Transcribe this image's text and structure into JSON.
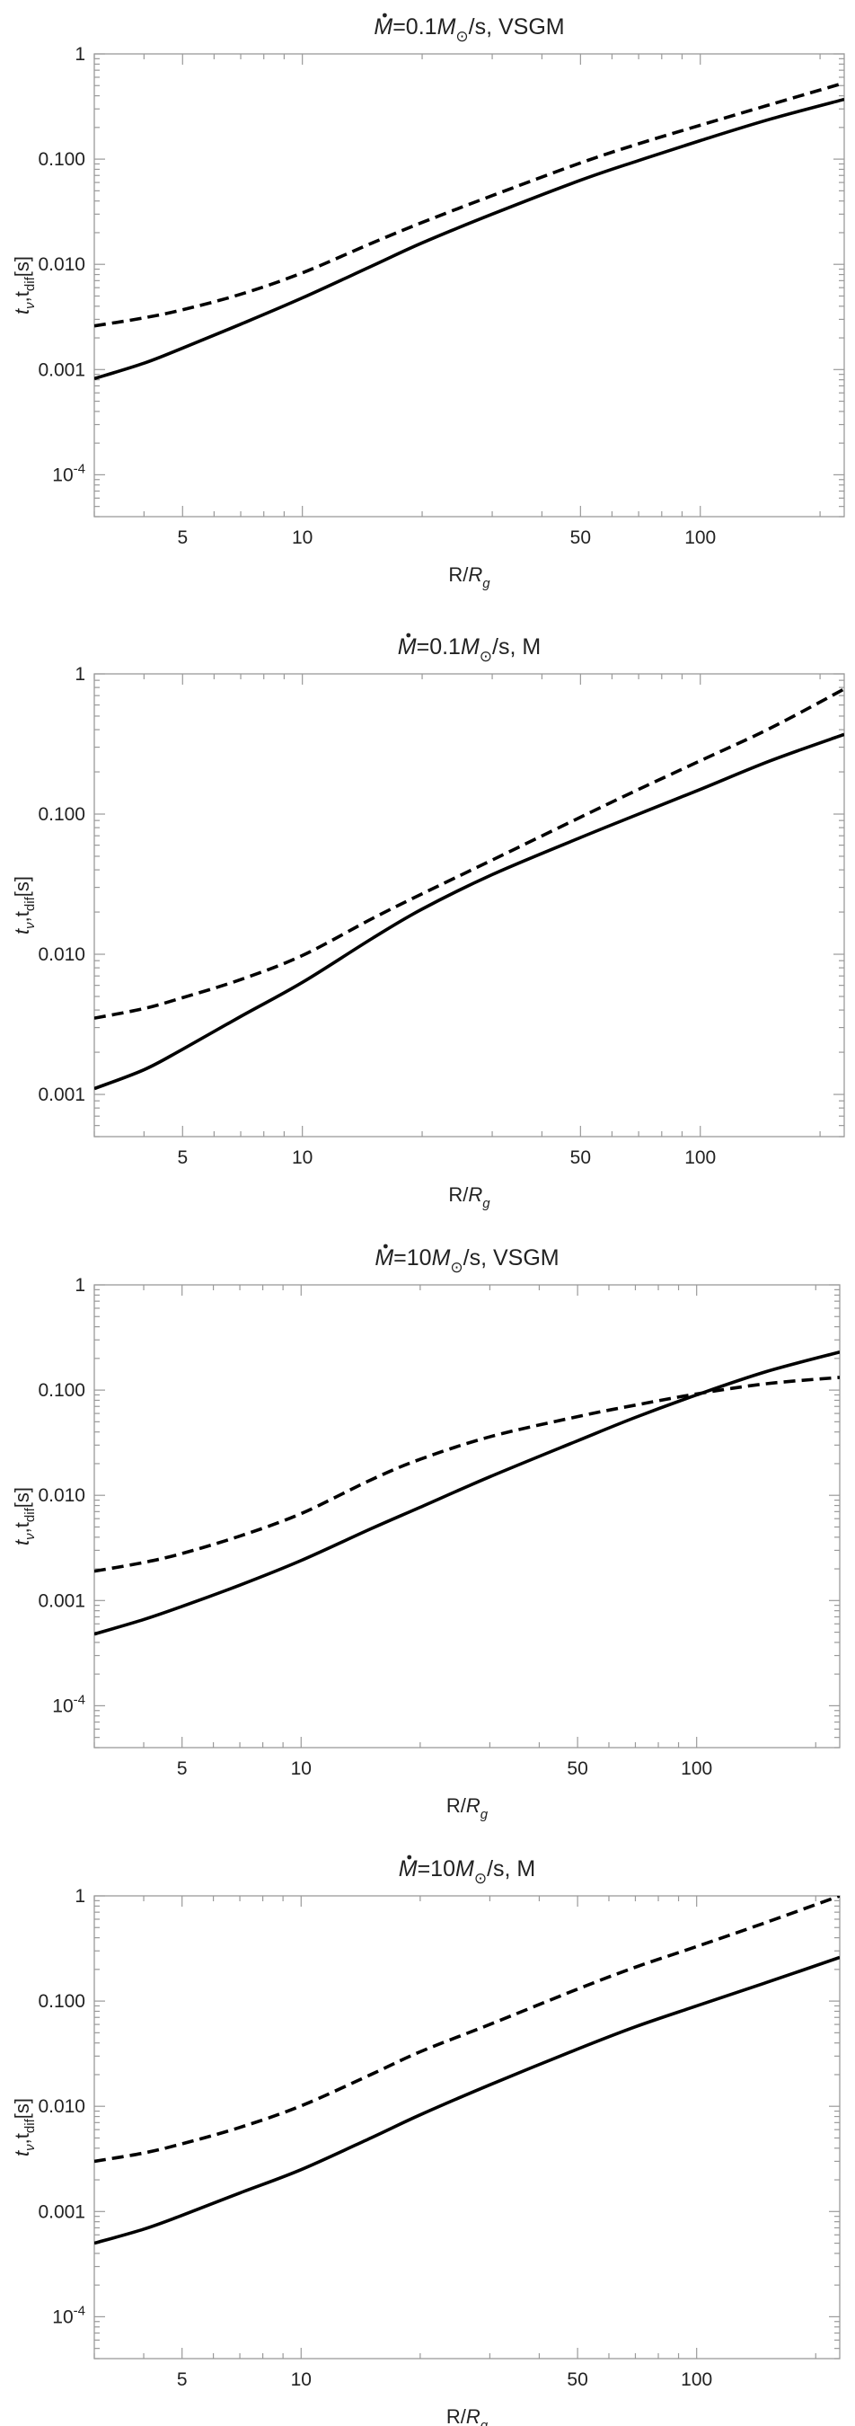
{
  "chart_data": [
    {
      "type": "line",
      "title_main": "=0.1M",
      "title_unit": "/s, VSGM",
      "xlabel": "R/R",
      "xlabel_sub": "g",
      "ylabel": "t",
      "ylabel_sub1": "ν",
      "ylabel_mid": ",t",
      "ylabel_sub2": "dif",
      "ylabel_end": "[s]",
      "xscale": "log",
      "yscale": "log",
      "xlim": [
        3,
        230
      ],
      "ylim": [
        4e-05,
        1
      ],
      "xticks": [
        {
          "v": 5,
          "label": "5"
        },
        {
          "v": 10,
          "label": "10"
        },
        {
          "v": 50,
          "label": "50"
        },
        {
          "v": 100,
          "label": "100"
        }
      ],
      "yticks": [
        {
          "v": 1,
          "label": "1"
        },
        {
          "v": 0.1,
          "label": "0.100"
        },
        {
          "v": 0.01,
          "label": "0.010"
        },
        {
          "v": 0.001,
          "label": "0.001"
        },
        {
          "v": 0.0001,
          "label": "10",
          "exp": "-4"
        }
      ],
      "series": [
        {
          "style": "solid",
          "x": [
            3,
            4,
            5,
            7,
            10,
            15,
            20,
            30,
            50,
            70,
            100,
            150,
            230
          ],
          "y": [
            0.00082,
            0.00115,
            0.0016,
            0.0027,
            0.0048,
            0.0097,
            0.016,
            0.03,
            0.063,
            0.097,
            0.15,
            0.24,
            0.37
          ]
        },
        {
          "style": "dashed",
          "x": [
            3,
            4,
            5,
            7,
            10,
            15,
            20,
            30,
            50,
            70,
            100,
            150,
            230
          ],
          "y": [
            0.0026,
            0.0031,
            0.0037,
            0.0052,
            0.0083,
            0.016,
            0.025,
            0.045,
            0.092,
            0.14,
            0.21,
            0.33,
            0.53
          ]
        }
      ]
    },
    {
      "type": "line",
      "title_main": "=0.1M",
      "title_unit": "/s, M",
      "xlabel": "R/R",
      "xlabel_sub": "g",
      "ylabel": "t",
      "ylabel_sub1": "ν",
      "ylabel_mid": ",t",
      "ylabel_sub2": "dif",
      "ylabel_end": "[s]",
      "xscale": "log",
      "yscale": "log",
      "xlim": [
        3,
        230
      ],
      "ylim": [
        0.0005,
        1
      ],
      "xticks": [
        {
          "v": 5,
          "label": "5"
        },
        {
          "v": 10,
          "label": "10"
        },
        {
          "v": 50,
          "label": "50"
        },
        {
          "v": 100,
          "label": "100"
        }
      ],
      "yticks": [
        {
          "v": 1,
          "label": "1"
        },
        {
          "v": 0.1,
          "label": "0.100"
        },
        {
          "v": 0.01,
          "label": "0.010"
        },
        {
          "v": 0.001,
          "label": "0.001"
        }
      ],
      "series": [
        {
          "style": "solid",
          "x": [
            3,
            4,
            5,
            7,
            10,
            15,
            20,
            30,
            50,
            70,
            100,
            150,
            230
          ],
          "y": [
            0.0011,
            0.0015,
            0.0021,
            0.0036,
            0.0063,
            0.013,
            0.021,
            0.037,
            0.068,
            0.1,
            0.15,
            0.24,
            0.37
          ]
        },
        {
          "style": "dashed",
          "x": [
            3,
            4,
            5,
            7,
            10,
            15,
            20,
            30,
            50,
            70,
            100,
            150,
            230
          ],
          "y": [
            0.0035,
            0.0041,
            0.0049,
            0.0066,
            0.0098,
            0.018,
            0.027,
            0.047,
            0.095,
            0.15,
            0.24,
            0.41,
            0.78
          ]
        }
      ]
    },
    {
      "type": "line",
      "title_main": "=10M",
      "title_unit": "/s, VSGM",
      "xlabel": "R/R",
      "xlabel_sub": "g",
      "ylabel": "t",
      "ylabel_sub1": "ν",
      "ylabel_mid": ",t",
      "ylabel_sub2": "dif",
      "ylabel_end": "[s]",
      "xscale": "log",
      "yscale": "log",
      "xlim": [
        3,
        230
      ],
      "ylim": [
        4e-05,
        1
      ],
      "xticks": [
        {
          "v": 5,
          "label": "5"
        },
        {
          "v": 10,
          "label": "10"
        },
        {
          "v": 50,
          "label": "50"
        },
        {
          "v": 100,
          "label": "100"
        }
      ],
      "yticks": [
        {
          "v": 1,
          "label": "1"
        },
        {
          "v": 0.1,
          "label": "0.100"
        },
        {
          "v": 0.01,
          "label": "0.010"
        },
        {
          "v": 0.001,
          "label": "0.001"
        },
        {
          "v": 0.0001,
          "label": "10",
          "exp": "-4"
        }
      ],
      "series": [
        {
          "style": "solid",
          "x": [
            3,
            4,
            5,
            7,
            10,
            15,
            20,
            30,
            50,
            70,
            100,
            150,
            230
          ],
          "y": [
            0.00048,
            0.00066,
            0.00088,
            0.0014,
            0.0024,
            0.0048,
            0.0077,
            0.015,
            0.033,
            0.055,
            0.09,
            0.15,
            0.23
          ]
        },
        {
          "style": "dashed",
          "x": [
            3,
            4,
            5,
            7,
            10,
            15,
            20,
            30,
            50,
            70,
            100,
            150,
            230
          ],
          "y": [
            0.0019,
            0.0023,
            0.0028,
            0.0041,
            0.0067,
            0.014,
            0.022,
            0.036,
            0.056,
            0.072,
            0.092,
            0.115,
            0.132
          ]
        }
      ]
    },
    {
      "type": "line",
      "title_main": "=10M",
      "title_unit": "/s, M",
      "xlabel": "R/R",
      "xlabel_sub": "g",
      "ylabel": "t",
      "ylabel_sub1": "ν",
      "ylabel_mid": ",t",
      "ylabel_sub2": "dif",
      "ylabel_end": "[s]",
      "xscale": "log",
      "yscale": "log",
      "xlim": [
        3,
        230
      ],
      "ylim": [
        4e-05,
        1
      ],
      "xticks": [
        {
          "v": 5,
          "label": "5"
        },
        {
          "v": 10,
          "label": "10"
        },
        {
          "v": 50,
          "label": "50"
        },
        {
          "v": 100,
          "label": "100"
        }
      ],
      "yticks": [
        {
          "v": 1,
          "label": "1"
        },
        {
          "v": 0.1,
          "label": "0.100"
        },
        {
          "v": 0.01,
          "label": "0.010"
        },
        {
          "v": 0.001,
          "label": "0.001"
        },
        {
          "v": 0.0001,
          "label": "10",
          "exp": "-4"
        }
      ],
      "series": [
        {
          "style": "solid",
          "x": [
            3,
            4,
            5,
            7,
            10,
            15,
            20,
            30,
            50,
            70,
            100,
            150,
            230
          ],
          "y": [
            0.0005,
            0.00068,
            0.00092,
            0.0015,
            0.0025,
            0.005,
            0.0083,
            0.016,
            0.035,
            0.057,
            0.09,
            0.15,
            0.26
          ]
        },
        {
          "style": "dashed",
          "x": [
            3,
            4,
            5,
            7,
            10,
            15,
            20,
            30,
            50,
            70,
            100,
            150,
            230
          ],
          "y": [
            0.003,
            0.0036,
            0.0044,
            0.0063,
            0.0101,
            0.02,
            0.033,
            0.06,
            0.13,
            0.21,
            0.33,
            0.56,
            1.0
          ]
        }
      ]
    }
  ]
}
